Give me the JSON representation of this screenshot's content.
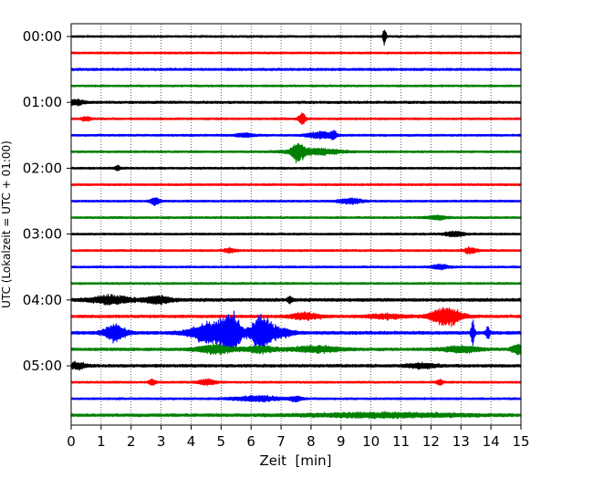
{
  "chart_data": {
    "type": "line",
    "title": "",
    "xlabel": "Zeit  [min]",
    "ylabel": "UTC (Lokalzeit = UTC + 01:00)",
    "xlim": [
      0,
      15
    ],
    "x_ticks": [
      0,
      1,
      2,
      3,
      4,
      5,
      6,
      7,
      8,
      9,
      10,
      11,
      12,
      13,
      14,
      15
    ],
    "y_tick_labels": [
      "00:00",
      "01:00",
      "02:00",
      "03:00",
      "04:00",
      "05:00"
    ],
    "grid": {
      "vertical": true,
      "style": "dotted"
    },
    "row_interval_minutes": 15,
    "color_cycle": [
      "#000000",
      "#ff0000",
      "#0000ff",
      "#008000"
    ],
    "series": [
      {
        "start": "00:00",
        "color": "#000000",
        "base_amplitude": 1.0,
        "events": [
          {
            "t": 10.45,
            "amp": 9,
            "width": 0.05
          }
        ]
      },
      {
        "start": "00:15",
        "color": "#ff0000",
        "base_amplitude": 1.0,
        "events": []
      },
      {
        "start": "00:30",
        "color": "#0000ff",
        "base_amplitude": 1.2,
        "events": []
      },
      {
        "start": "00:45",
        "color": "#008000",
        "base_amplitude": 1.0,
        "events": []
      },
      {
        "start": "01:00",
        "color": "#000000",
        "base_amplitude": 1.2,
        "events": [
          {
            "t": 0.15,
            "amp": 2.5,
            "width": 0.3
          }
        ]
      },
      {
        "start": "01:15",
        "color": "#ff0000",
        "base_amplitude": 1.0,
        "events": [
          {
            "t": 0.5,
            "amp": 2,
            "width": 0.15
          },
          {
            "t": 7.7,
            "amp": 6,
            "width": 0.12
          }
        ]
      },
      {
        "start": "01:30",
        "color": "#0000ff",
        "base_amplitude": 1.0,
        "events": [
          {
            "t": 5.8,
            "amp": 2,
            "width": 0.3
          },
          {
            "t": 8.3,
            "amp": 3.5,
            "width": 0.4
          },
          {
            "t": 8.75,
            "amp": 4,
            "width": 0.1
          }
        ]
      },
      {
        "start": "01:45",
        "color": "#008000",
        "base_amplitude": 1.0,
        "events": [
          {
            "t": 7.55,
            "amp": 8,
            "width": 0.2
          },
          {
            "t": 8.1,
            "amp": 3,
            "width": 0.9
          }
        ]
      },
      {
        "start": "02:00",
        "color": "#000000",
        "base_amplitude": 1.0,
        "events": [
          {
            "t": 1.55,
            "amp": 2.5,
            "width": 0.08
          }
        ]
      },
      {
        "start": "02:15",
        "color": "#ff0000",
        "base_amplitude": 1.0,
        "events": []
      },
      {
        "start": "02:30",
        "color": "#0000ff",
        "base_amplitude": 1.0,
        "events": [
          {
            "t": 2.8,
            "amp": 4,
            "width": 0.15
          },
          {
            "t": 9.3,
            "amp": 2.5,
            "width": 0.4
          }
        ]
      },
      {
        "start": "02:45",
        "color": "#008000",
        "base_amplitude": 1.0,
        "events": [
          {
            "t": 12.2,
            "amp": 2,
            "width": 0.3
          }
        ]
      },
      {
        "start": "03:00",
        "color": "#000000",
        "base_amplitude": 1.0,
        "events": [
          {
            "t": 12.8,
            "amp": 2.5,
            "width": 0.3
          }
        ]
      },
      {
        "start": "03:15",
        "color": "#ff0000",
        "base_amplitude": 1.0,
        "events": [
          {
            "t": 5.3,
            "amp": 2,
            "width": 0.2
          },
          {
            "t": 13.3,
            "amp": 3,
            "width": 0.2
          }
        ]
      },
      {
        "start": "03:30",
        "color": "#0000ff",
        "base_amplitude": 1.0,
        "events": [
          {
            "t": 12.3,
            "amp": 2,
            "width": 0.3
          }
        ]
      },
      {
        "start": "03:45",
        "color": "#008000",
        "base_amplitude": 1.0,
        "events": []
      },
      {
        "start": "04:00",
        "color": "#000000",
        "base_amplitude": 1.5,
        "events": [
          {
            "t": 1.3,
            "amp": 3.5,
            "width": 0.7
          },
          {
            "t": 2.9,
            "amp": 4,
            "width": 0.4
          },
          {
            "t": 7.3,
            "amp": 3,
            "width": 0.08
          }
        ]
      },
      {
        "start": "04:15",
        "color": "#ff0000",
        "base_amplitude": 1.4,
        "events": [
          {
            "t": 7.8,
            "amp": 3,
            "width": 0.5
          },
          {
            "t": 10.5,
            "amp": 2,
            "width": 0.6
          },
          {
            "t": 12.5,
            "amp": 9,
            "width": 0.5
          }
        ]
      },
      {
        "start": "04:30",
        "color": "#0000ff",
        "base_amplitude": 1.5,
        "events": [
          {
            "t": 1.45,
            "amp": 9,
            "width": 0.35
          },
          {
            "t": 4.7,
            "amp": 11,
            "width": 0.7
          },
          {
            "t": 5.35,
            "amp": 16,
            "width": 0.3
          },
          {
            "t": 6.35,
            "amp": 18,
            "width": 0.35
          },
          {
            "t": 7.0,
            "amp": 4,
            "width": 0.4
          },
          {
            "t": 13.4,
            "amp": 13,
            "width": 0.06
          },
          {
            "t": 13.9,
            "amp": 7,
            "width": 0.06
          }
        ]
      },
      {
        "start": "04:45",
        "color": "#008000",
        "base_amplitude": 1.4,
        "events": [
          {
            "t": 4.8,
            "amp": 4,
            "width": 0.6
          },
          {
            "t": 6.3,
            "amp": 3,
            "width": 0.5
          },
          {
            "t": 8.2,
            "amp": 3,
            "width": 0.8
          },
          {
            "t": 13.0,
            "amp": 3,
            "width": 0.6
          },
          {
            "t": 14.9,
            "amp": 5,
            "width": 0.2
          }
        ]
      },
      {
        "start": "05:00",
        "color": "#000000",
        "base_amplitude": 1.4,
        "events": [
          {
            "t": 0.2,
            "amp": 3,
            "width": 0.3
          },
          {
            "t": 11.7,
            "amp": 2,
            "width": 0.5
          }
        ]
      },
      {
        "start": "05:15",
        "color": "#ff0000",
        "base_amplitude": 1.0,
        "events": [
          {
            "t": 2.7,
            "amp": 3.5,
            "width": 0.1
          },
          {
            "t": 4.5,
            "amp": 2.5,
            "width": 0.3
          },
          {
            "t": 12.3,
            "amp": 3,
            "width": 0.1
          }
        ]
      },
      {
        "start": "05:30",
        "color": "#0000ff",
        "base_amplitude": 1.0,
        "events": [
          {
            "t": 6.2,
            "amp": 2.5,
            "width": 0.8
          },
          {
            "t": 7.5,
            "amp": 2.5,
            "width": 0.2
          }
        ]
      },
      {
        "start": "05:45",
        "color": "#008000",
        "base_amplitude": 1.4,
        "events": [
          {
            "t": 10.5,
            "amp": 2,
            "width": 2.5
          }
        ]
      }
    ]
  }
}
